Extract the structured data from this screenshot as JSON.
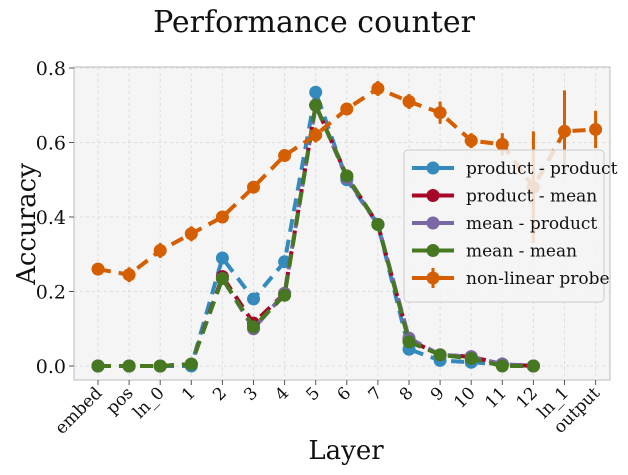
{
  "chart_data": {
    "type": "line",
    "title": "Performance counter",
    "xlabel": "Layer",
    "ylabel": "Accuracy",
    "ylim": [
      -0.03,
      0.8
    ],
    "yticks": [
      0.0,
      0.2,
      0.4,
      0.6,
      0.8
    ],
    "ytick_labels": [
      "0.0",
      "0.2",
      "0.4",
      "0.6",
      "0.8"
    ],
    "categories": [
      "embed",
      "pos",
      "ln_0",
      "1",
      "2",
      "3",
      "4",
      "5",
      "6",
      "7",
      "8",
      "9",
      "10",
      "11",
      "12",
      "ln_1",
      "output"
    ],
    "grid": true,
    "legend_position": "center-right",
    "series": [
      {
        "name": "product - product",
        "color": "#348ABD",
        "x": [
          "embed",
          "pos",
          "ln_0",
          "1",
          "2",
          "3",
          "4",
          "5",
          "6",
          "7",
          "8",
          "9",
          "10",
          "11",
          "12"
        ],
        "values": [
          0.0,
          0.0,
          0.0,
          0.0,
          0.29,
          0.18,
          0.28,
          0.735,
          0.5,
          0.38,
          0.045,
          0.015,
          0.01,
          0.005,
          0.0
        ]
      },
      {
        "name": "product - mean",
        "color": "#A60628",
        "x": [
          "embed",
          "pos",
          "ln_0",
          "1",
          "2",
          "3",
          "4",
          "5",
          "6",
          "7",
          "8",
          "9",
          "10",
          "11",
          "12"
        ],
        "values": [
          0.0,
          0.0,
          0.0,
          0.005,
          0.24,
          0.115,
          0.195,
          0.7,
          0.51,
          0.38,
          0.07,
          0.03,
          0.025,
          0.005,
          0.0
        ]
      },
      {
        "name": "mean - product",
        "color": "#7A68A6",
        "x": [
          "embed",
          "pos",
          "ln_0",
          "1",
          "2",
          "3",
          "4",
          "5",
          "6",
          "7",
          "8",
          "9",
          "10",
          "11",
          "12"
        ],
        "values": [
          0.0,
          0.0,
          0.0,
          0.005,
          0.235,
          0.1,
          0.195,
          0.7,
          0.505,
          0.38,
          0.075,
          0.03,
          0.025,
          0.005,
          0.0
        ]
      },
      {
        "name": "mean - mean",
        "color": "#467821",
        "x": [
          "embed",
          "pos",
          "ln_0",
          "1",
          "2",
          "3",
          "4",
          "5",
          "6",
          "7",
          "8",
          "9",
          "10",
          "11",
          "12"
        ],
        "values": [
          0.0,
          0.0,
          0.0,
          0.005,
          0.235,
          0.105,
          0.19,
          0.7,
          0.51,
          0.38,
          0.065,
          0.03,
          0.02,
          0.0,
          0.0
        ]
      },
      {
        "name": "non-linear probe",
        "color": "#D55E00",
        "x": [
          "embed",
          "pos",
          "ln_0",
          "1",
          "2",
          "3",
          "4",
          "5",
          "6",
          "7",
          "8",
          "9",
          "10",
          "11",
          "12",
          "ln_1",
          "output"
        ],
        "values": [
          0.26,
          0.245,
          0.31,
          0.355,
          0.4,
          0.48,
          0.565,
          0.62,
          0.69,
          0.745,
          0.71,
          0.68,
          0.605,
          0.595,
          0.48,
          0.63,
          0.635
        ],
        "errors": [
          0.01,
          0.02,
          0.02,
          0.02,
          0.01,
          0.01,
          0.01,
          0.02,
          0.01,
          0.02,
          0.02,
          0.03,
          0.02,
          0.03,
          0.15,
          0.11,
          0.05
        ]
      }
    ]
  }
}
